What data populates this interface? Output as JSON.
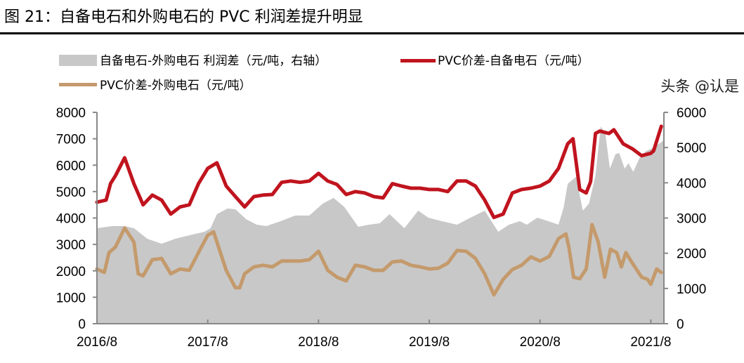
{
  "title": "图 21：自备电石和外购电石的 PVC 利润差提升明显",
  "watermark": "头条 @认是",
  "colors": {
    "area": "#c8c8c8",
    "self_supplied": "#c0141e",
    "purchased": "#c49a6c"
  },
  "chart_data": {
    "type": "line+area",
    "legend_position": "top",
    "grid": false,
    "xlim": [
      "2016-08-01",
      "2021-09-12"
    ],
    "x_ticks": [
      "2016/8",
      "2017/8",
      "2018/8",
      "2019/8",
      "2020/8",
      "2021/8"
    ],
    "y_left": {
      "lim": [
        0,
        8000
      ],
      "ticks": [
        "0",
        "1000",
        "2000",
        "3000",
        "4000",
        "5000",
        "6000",
        "7000",
        "8000"
      ]
    },
    "y_right": {
      "lim": [
        0,
        6000
      ],
      "ticks": [
        "0",
        "1000",
        "2000",
        "3000",
        "4000",
        "5000",
        "6000"
      ]
    },
    "series": [
      {
        "name": "自备电石-外购电石 利润差（元/吨，右轴）",
        "type": "area",
        "axis": "right",
        "points": [
          [
            "2016-08-01",
            2710
          ],
          [
            "2016-09-20",
            2770
          ],
          [
            "2016-11-01",
            2770
          ],
          [
            "2016-12-01",
            2710
          ],
          [
            "2017-01-15",
            2410
          ],
          [
            "2017-03-01",
            2270
          ],
          [
            "2017-04-15",
            2410
          ],
          [
            "2017-06-01",
            2510
          ],
          [
            "2017-07-20",
            2610
          ],
          [
            "2017-08-10",
            2710
          ],
          [
            "2017-09-01",
            3110
          ],
          [
            "2017-10-05",
            3270
          ],
          [
            "2017-11-01",
            3250
          ],
          [
            "2017-12-05",
            2970
          ],
          [
            "2018-01-10",
            2810
          ],
          [
            "2018-02-12",
            2770
          ],
          [
            "2018-03-28",
            2910
          ],
          [
            "2018-05-15",
            3070
          ],
          [
            "2018-07-01",
            3070
          ],
          [
            "2018-08-15",
            3410
          ],
          [
            "2018-09-20",
            3570
          ],
          [
            "2018-10-25",
            3310
          ],
          [
            "2018-12-10",
            2750
          ],
          [
            "2019-01-15",
            2810
          ],
          [
            "2019-02-20",
            2850
          ],
          [
            "2019-03-22",
            3110
          ],
          [
            "2019-05-10",
            2710
          ],
          [
            "2019-06-25",
            3210
          ],
          [
            "2019-07-28",
            3010
          ],
          [
            "2019-09-12",
            2910
          ],
          [
            "2019-11-01",
            2810
          ],
          [
            "2019-12-15",
            3010
          ],
          [
            "2020-02-01",
            3210
          ],
          [
            "2020-03-15",
            2610
          ],
          [
            "2020-04-20",
            2810
          ],
          [
            "2020-05-25",
            2910
          ],
          [
            "2020-06-18",
            2810
          ],
          [
            "2020-07-22",
            3010
          ],
          [
            "2020-08-28",
            2910
          ],
          [
            "2020-10-01",
            2810
          ],
          [
            "2020-10-18",
            3310
          ],
          [
            "2020-11-01",
            3970
          ],
          [
            "2020-11-28",
            4170
          ],
          [
            "2020-12-20",
            3210
          ],
          [
            "2021-01-10",
            3410
          ],
          [
            "2021-02-01",
            4210
          ],
          [
            "2021-02-18",
            5600
          ],
          [
            "2021-03-03",
            5400
          ],
          [
            "2021-03-18",
            4400
          ],
          [
            "2021-04-06",
            4810
          ],
          [
            "2021-04-18",
            4850
          ],
          [
            "2021-05-06",
            4400
          ],
          [
            "2021-05-18",
            4560
          ],
          [
            "2021-06-04",
            4310
          ],
          [
            "2021-06-24",
            4700
          ],
          [
            "2021-07-15",
            4900
          ],
          [
            "2021-08-10",
            5000
          ],
          [
            "2021-09-12",
            5200
          ]
        ]
      },
      {
        "name": "PVC价差-自备电石（元/吨）",
        "type": "line",
        "axis": "left",
        "points": [
          [
            "2016-08-01",
            4600
          ],
          [
            "2016-09-01",
            4680
          ],
          [
            "2016-09-15",
            5300
          ],
          [
            "2016-10-01",
            5600
          ],
          [
            "2016-11-01",
            6280
          ],
          [
            "2016-12-01",
            5300
          ],
          [
            "2017-01-01",
            4500
          ],
          [
            "2017-02-01",
            4870
          ],
          [
            "2017-03-01",
            4680
          ],
          [
            "2017-04-01",
            4150
          ],
          [
            "2017-05-01",
            4420
          ],
          [
            "2017-06-01",
            4500
          ],
          [
            "2017-07-01",
            5300
          ],
          [
            "2017-08-01",
            5880
          ],
          [
            "2017-09-01",
            6090
          ],
          [
            "2017-10-01",
            5210
          ],
          [
            "2017-11-01",
            4810
          ],
          [
            "2017-12-01",
            4420
          ],
          [
            "2018-01-01",
            4810
          ],
          [
            "2018-02-01",
            4870
          ],
          [
            "2018-03-01",
            4890
          ],
          [
            "2018-04-01",
            5350
          ],
          [
            "2018-05-01",
            5400
          ],
          [
            "2018-06-01",
            5350
          ],
          [
            "2018-07-01",
            5400
          ],
          [
            "2018-08-01",
            5690
          ],
          [
            "2018-09-01",
            5400
          ],
          [
            "2018-10-01",
            5270
          ],
          [
            "2018-11-01",
            4890
          ],
          [
            "2018-12-01",
            5000
          ],
          [
            "2019-01-01",
            4950
          ],
          [
            "2019-02-01",
            4810
          ],
          [
            "2019-03-01",
            4760
          ],
          [
            "2019-04-01",
            5300
          ],
          [
            "2019-05-01",
            5210
          ],
          [
            "2019-06-01",
            5130
          ],
          [
            "2019-07-01",
            5130
          ],
          [
            "2019-08-01",
            5080
          ],
          [
            "2019-09-01",
            5080
          ],
          [
            "2019-10-01",
            5000
          ],
          [
            "2019-11-01",
            5400
          ],
          [
            "2019-12-01",
            5400
          ],
          [
            "2020-01-01",
            5210
          ],
          [
            "2020-02-01",
            4680
          ],
          [
            "2020-03-01",
            4020
          ],
          [
            "2020-04-01",
            4150
          ],
          [
            "2020-05-01",
            4950
          ],
          [
            "2020-06-01",
            5080
          ],
          [
            "2020-07-01",
            5130
          ],
          [
            "2020-08-01",
            5210
          ],
          [
            "2020-09-01",
            5400
          ],
          [
            "2020-10-01",
            5880
          ],
          [
            "2020-11-01",
            6810
          ],
          [
            "2020-11-18",
            7000
          ],
          [
            "2020-12-10",
            5080
          ],
          [
            "2021-01-01",
            4950
          ],
          [
            "2021-01-15",
            5370
          ],
          [
            "2021-02-01",
            7200
          ],
          [
            "2021-02-15",
            7290
          ],
          [
            "2021-03-15",
            7200
          ],
          [
            "2021-04-01",
            7340
          ],
          [
            "2021-05-01",
            6810
          ],
          [
            "2021-06-01",
            6620
          ],
          [
            "2021-07-01",
            6360
          ],
          [
            "2021-08-01",
            6450
          ],
          [
            "2021-08-10",
            6540
          ],
          [
            "2021-09-05",
            7470
          ]
        ]
      },
      {
        "name": "PVC价差-外购电石（元/吨）",
        "type": "line",
        "axis": "left",
        "points": [
          [
            "2016-08-01",
            2070
          ],
          [
            "2016-08-25",
            1940
          ],
          [
            "2016-09-10",
            2690
          ],
          [
            "2016-10-01",
            2900
          ],
          [
            "2016-11-01",
            3620
          ],
          [
            "2016-12-01",
            3090
          ],
          [
            "2016-12-15",
            1890
          ],
          [
            "2017-01-01",
            1810
          ],
          [
            "2017-02-01",
            2420
          ],
          [
            "2017-03-01",
            2470
          ],
          [
            "2017-04-01",
            1890
          ],
          [
            "2017-05-01",
            2070
          ],
          [
            "2017-06-01",
            2020
          ],
          [
            "2017-07-01",
            2690
          ],
          [
            "2017-08-01",
            3350
          ],
          [
            "2017-08-20",
            3480
          ],
          [
            "2017-10-01",
            2020
          ],
          [
            "2017-11-01",
            1360
          ],
          [
            "2017-11-15",
            1360
          ],
          [
            "2017-12-01",
            1890
          ],
          [
            "2018-01-01",
            2150
          ],
          [
            "2018-02-01",
            2210
          ],
          [
            "2018-03-01",
            2150
          ],
          [
            "2018-04-01",
            2370
          ],
          [
            "2018-05-01",
            2370
          ],
          [
            "2018-06-01",
            2370
          ],
          [
            "2018-07-01",
            2420
          ],
          [
            "2018-08-01",
            2740
          ],
          [
            "2018-09-01",
            2020
          ],
          [
            "2018-10-01",
            1760
          ],
          [
            "2018-11-01",
            1620
          ],
          [
            "2018-12-01",
            2210
          ],
          [
            "2019-01-01",
            2150
          ],
          [
            "2019-02-01",
            2020
          ],
          [
            "2019-03-01",
            2020
          ],
          [
            "2019-04-01",
            2340
          ],
          [
            "2019-05-01",
            2370
          ],
          [
            "2019-06-01",
            2210
          ],
          [
            "2019-07-01",
            2150
          ],
          [
            "2019-08-01",
            2070
          ],
          [
            "2019-09-01",
            2100
          ],
          [
            "2019-10-01",
            2290
          ],
          [
            "2019-11-01",
            2770
          ],
          [
            "2019-12-01",
            2740
          ],
          [
            "2020-01-01",
            2470
          ],
          [
            "2020-02-01",
            1890
          ],
          [
            "2020-03-01",
            1090
          ],
          [
            "2020-04-01",
            1680
          ],
          [
            "2020-05-01",
            2050
          ],
          [
            "2020-06-01",
            2210
          ],
          [
            "2020-07-01",
            2530
          ],
          [
            "2020-08-01",
            2370
          ],
          [
            "2020-09-01",
            2550
          ],
          [
            "2020-10-01",
            3220
          ],
          [
            "2020-10-25",
            3400
          ],
          [
            "2020-11-05",
            2870
          ],
          [
            "2020-11-20",
            1760
          ],
          [
            "2020-12-10",
            1700
          ],
          [
            "2021-01-01",
            2070
          ],
          [
            "2021-01-20",
            3750
          ],
          [
            "2021-02-10",
            3090
          ],
          [
            "2021-03-01",
            1760
          ],
          [
            "2021-03-20",
            2820
          ],
          [
            "2021-04-10",
            2690
          ],
          [
            "2021-04-25",
            2150
          ],
          [
            "2021-05-10",
            2690
          ],
          [
            "2021-06-01",
            2290
          ],
          [
            "2021-07-01",
            1760
          ],
          [
            "2021-07-20",
            1680
          ],
          [
            "2021-08-01",
            1490
          ],
          [
            "2021-08-20",
            2070
          ],
          [
            "2021-09-05",
            1940
          ]
        ]
      }
    ]
  }
}
